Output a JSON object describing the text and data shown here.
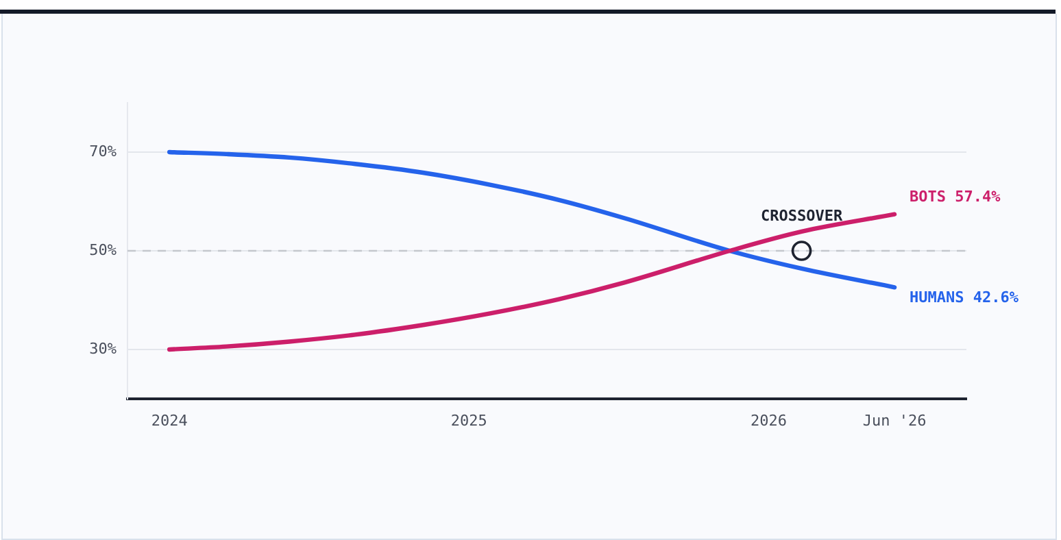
{
  "chart_data": {
    "type": "line",
    "x": [
      2024,
      2024.19,
      2024.4,
      2024.62,
      2024.85,
      2025.07,
      2025.3,
      2025.52,
      2025.87,
      2026.11,
      2026.42
    ],
    "series": [
      {
        "name": "BOTS",
        "color": "#cc1f6a",
        "values": [
          30,
          30.6,
          31.6,
          33,
          35,
          37.3,
          40.2,
          43.6,
          50,
          53.9,
          57.4
        ],
        "value_labels": [
          null,
          null,
          null,
          null,
          null,
          null,
          null,
          null,
          null,
          null,
          "57.4%"
        ]
      },
      {
        "name": "HUMANS",
        "color": "#2563eb",
        "values": [
          70,
          69.6,
          68.9,
          67.6,
          65.8,
          63.4,
          60.3,
          56.6,
          50,
          46.4,
          42.6
        ],
        "value_labels": [
          null,
          null,
          null,
          null,
          null,
          null,
          null,
          null,
          null,
          null,
          "42.6%"
        ]
      }
    ],
    "xlim": [
      2023.86,
      2026.66
    ],
    "xticks": [
      2024,
      2025,
      2026,
      {
        "value": 2026.42,
        "label": "Jun '26"
      }
    ],
    "ylim": [
      20,
      80
    ],
    "yticks": [
      {
        "value": 30,
        "label": "30%"
      },
      {
        "value": 50,
        "label": "50%"
      },
      {
        "value": 70,
        "label": "70%"
      }
    ],
    "grid": "y",
    "legend": false,
    "marker": "none",
    "line_style": "solid",
    "ref_lines": [
      {
        "axis": "y",
        "value": 50,
        "color": "#c4c7cd",
        "line_style": "dashed"
      }
    ],
    "annotations": [
      {
        "text": "CROSSOVER",
        "x": 2026.11,
        "y": 50
      }
    ]
  }
}
